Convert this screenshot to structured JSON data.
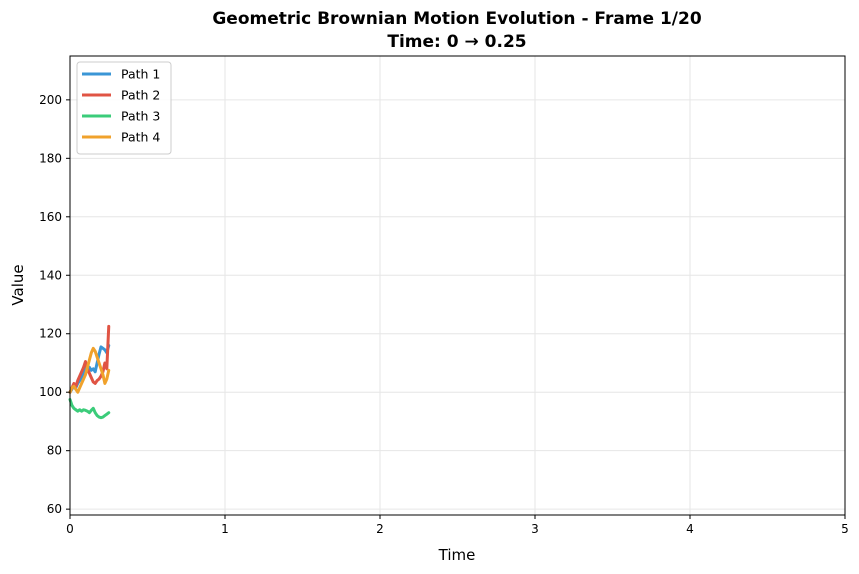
{
  "chart_data": {
    "type": "line",
    "title": "Geometric Brownian Motion Evolution - Frame 1/20",
    "subtitle": "Time: 0 → 0.25",
    "xlabel": "Time",
    "ylabel": "Value",
    "xlim": [
      0,
      5
    ],
    "ylim": [
      58,
      215
    ],
    "xticks": [
      0,
      1,
      2,
      3,
      4,
      5
    ],
    "yticks": [
      60,
      80,
      100,
      120,
      140,
      160,
      180,
      200
    ],
    "grid": true,
    "legend_position": "upper-left",
    "series": [
      {
        "name": "Path 1",
        "color": "#3a96d6",
        "x": [
          0,
          0.0125,
          0.025,
          0.0375,
          0.05,
          0.0625,
          0.075,
          0.0875,
          0.1,
          0.1125,
          0.125,
          0.1375,
          0.15,
          0.1625,
          0.175,
          0.1875,
          0.2,
          0.2125,
          0.225,
          0.2375,
          0.25
        ],
        "y": [
          100,
          101,
          102.5,
          101.5,
          103,
          104,
          105,
          106.5,
          108,
          109,
          108.5,
          107.5,
          108,
          107,
          110,
          113,
          115.5,
          115,
          114.5,
          113.5,
          116
        ]
      },
      {
        "name": "Path 2",
        "color": "#e05444",
        "x": [
          0,
          0.0125,
          0.025,
          0.0375,
          0.05,
          0.0625,
          0.075,
          0.0875,
          0.1,
          0.1125,
          0.125,
          0.1375,
          0.15,
          0.1625,
          0.175,
          0.1875,
          0.2,
          0.2125,
          0.225,
          0.2375,
          0.25
        ],
        "y": [
          100,
          101.5,
          103,
          102,
          104,
          105.5,
          107,
          108.5,
          110.5,
          108,
          106.5,
          105,
          103.5,
          103,
          104,
          104.5,
          105.5,
          107,
          110,
          108,
          122.5
        ]
      },
      {
        "name": "Path 3",
        "color": "#3bcc7a",
        "x": [
          0,
          0.0125,
          0.025,
          0.0375,
          0.05,
          0.0625,
          0.075,
          0.0875,
          0.1,
          0.1125,
          0.125,
          0.1375,
          0.15,
          0.1625,
          0.175,
          0.1875,
          0.2,
          0.2125,
          0.225,
          0.2375,
          0.25
        ],
        "y": [
          97.5,
          95.5,
          94.5,
          94,
          93.5,
          94,
          93.5,
          94,
          93.8,
          93.5,
          93,
          93.8,
          94.5,
          93,
          92,
          91.5,
          91.3,
          91.5,
          92,
          92.5,
          93
        ]
      },
      {
        "name": "Path 4",
        "color": "#f0a22c",
        "x": [
          0,
          0.0125,
          0.025,
          0.0375,
          0.05,
          0.0625,
          0.075,
          0.0875,
          0.1,
          0.1125,
          0.125,
          0.1375,
          0.15,
          0.1625,
          0.175,
          0.1875,
          0.2,
          0.2125,
          0.225,
          0.2375,
          0.25
        ],
        "y": [
          100,
          101.5,
          102,
          101,
          100,
          101.5,
          103,
          104.5,
          106,
          108.5,
          111,
          113.5,
          115,
          114,
          112,
          110,
          108,
          106,
          103,
          104.5,
          107.5
        ]
      }
    ]
  }
}
